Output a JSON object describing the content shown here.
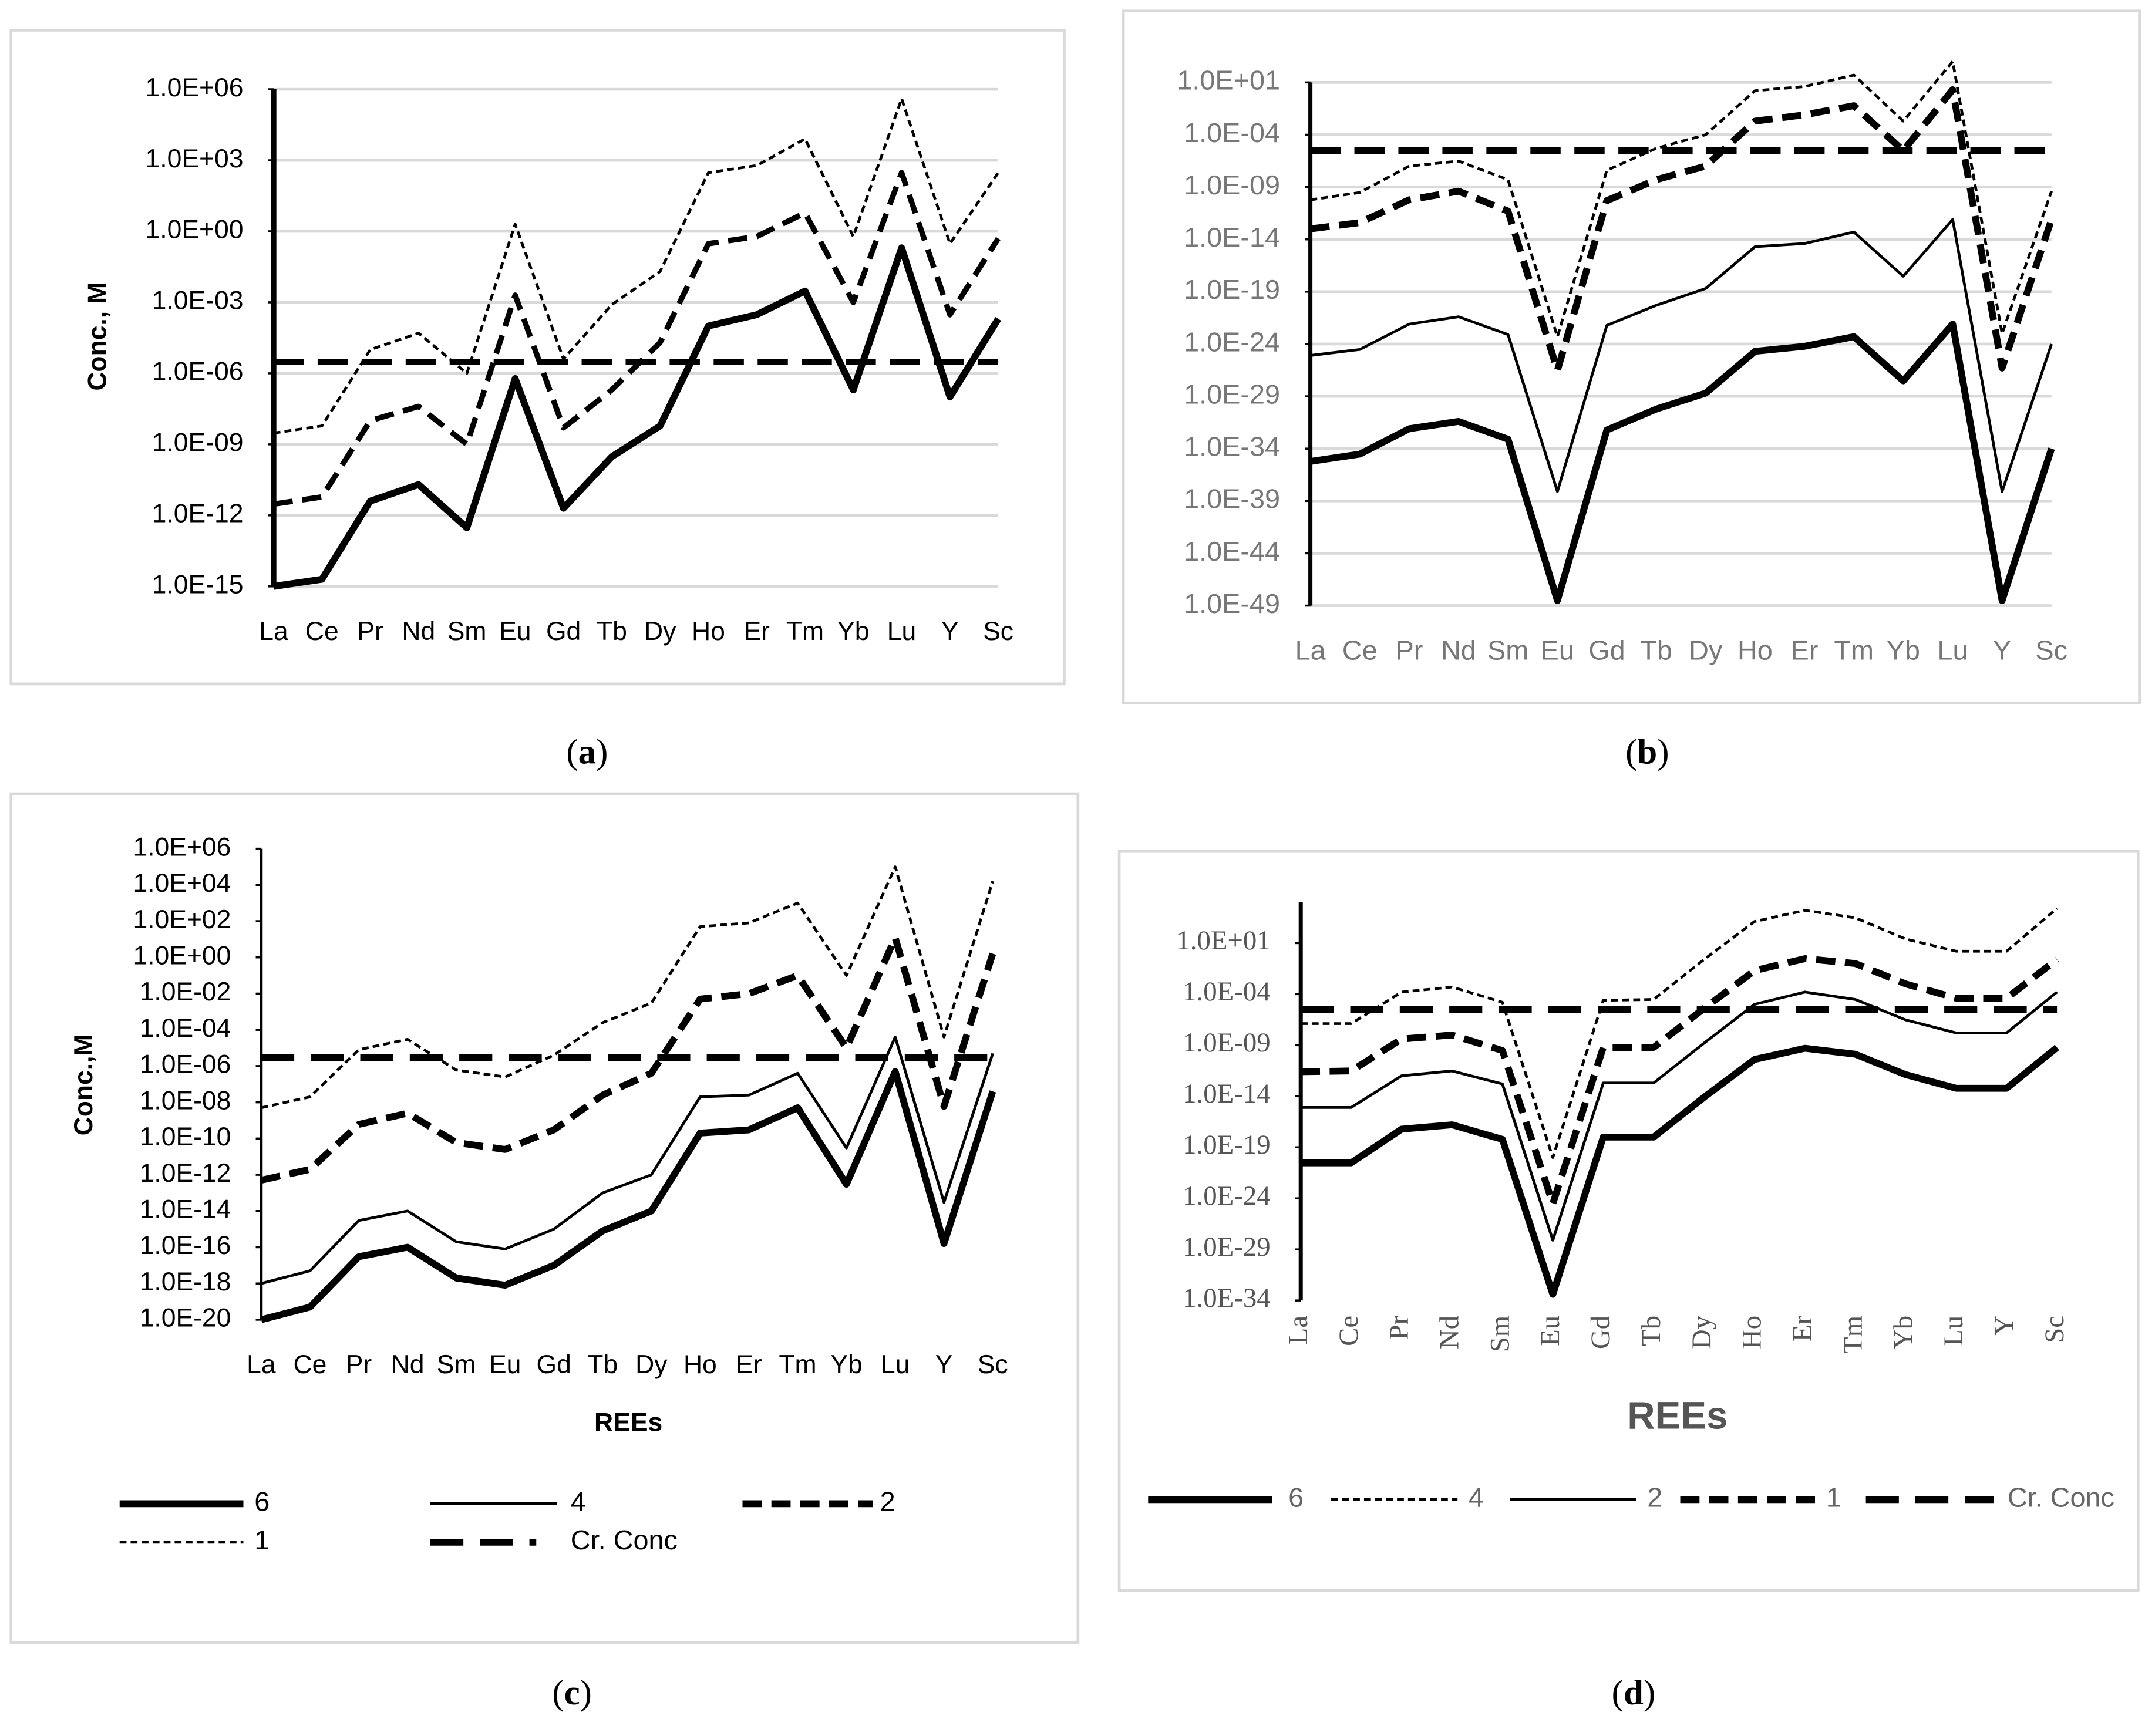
{
  "chart_data": [
    {
      "type": "line",
      "caption": "(a)",
      "y_label": "Conc., M",
      "yscale": "log",
      "grid": true,
      "categories": [
        "La",
        "Ce",
        "Pr",
        "Nd",
        "Sm",
        "Eu",
        "Gd",
        "Tb",
        "Dy",
        "Ho",
        "Er",
        "Tm",
        "Yb",
        "Lu",
        "Y",
        "Sc"
      ],
      "ylim": [
        1e-15,
        1000000.0
      ],
      "yticks": [
        {
          "value": 1000000.0,
          "label": "1.0E+06"
        },
        {
          "value": 1000.0,
          "label": "1.0E+03"
        },
        {
          "value": 1,
          "label": "1.0E+00"
        },
        {
          "value": 0.001,
          "label": "1.0E-03"
        },
        {
          "value": 1e-06,
          "label": "1.0E-06"
        },
        {
          "value": 1e-09,
          "label": "1.0E-09"
        },
        {
          "value": 1e-12,
          "label": "1.0E-12"
        },
        {
          "value": 1e-15,
          "label": "1.0E-15"
        }
      ],
      "series": [
        {
          "color": "#000000",
          "values": [
            1e-15,
            2e-15,
            4e-12,
            2e-11,
            3e-13,
            6e-07,
            2e-12,
            3e-10,
            6e-09,
            0.0001,
            0.0003,
            0.003,
            2e-07,
            0.2,
            1e-07,
            0.0002
          ]
        },
        {
          "color": "#000000",
          "values": [
            3e-12,
            6e-12,
            1e-08,
            4e-08,
            1e-09,
            0.002,
            5e-09,
            2e-07,
            2e-05,
            0.3,
            0.6,
            6,
            0.001,
            300,
            0.0003,
            0.5
          ]
        },
        {
          "color": "#000000",
          "values": [
            3e-09,
            6e-09,
            1e-05,
            5e-05,
            1e-06,
            2,
            4e-06,
            0.0008,
            0.02,
            300,
            600,
            8000,
            0.6,
            400000.0,
            0.3,
            300
          ]
        },
        {
          "color": "#000000",
          "values": [
            3e-06,
            3e-06,
            3e-06,
            3e-06,
            3e-06,
            3e-06,
            3e-06,
            3e-06,
            3e-06,
            3e-06,
            3e-06,
            3e-06,
            3e-06,
            3e-06,
            3e-06,
            3e-06
          ]
        }
      ]
    },
    {
      "type": "line",
      "caption": "(b)",
      "yscale": "log",
      "grid": true,
      "categories": [
        "La",
        "Ce",
        "Pr",
        "Nd",
        "Sm",
        "Eu",
        "Gd",
        "Tb",
        "Dy",
        "Ho",
        "Er",
        "Tm",
        "Yb",
        "Lu",
        "Y",
        "Sc"
      ],
      "ylim": [
        1e-49,
        10
      ],
      "yticks": [
        {
          "value": 10,
          "label": "1.0E+01"
        },
        {
          "value": 0.0001,
          "label": "1.0E-04"
        },
        {
          "value": 1e-09,
          "label": "1.0E-09"
        },
        {
          "value": 1e-14,
          "label": "1.0E-14"
        },
        {
          "value": 1e-19,
          "label": "1.0E-19"
        },
        {
          "value": 1e-24,
          "label": "1.0E-24"
        },
        {
          "value": 1e-29,
          "label": "1.0E-29"
        },
        {
          "value": 1e-34,
          "label": "1.0E-34"
        },
        {
          "value": 1e-39,
          "label": "1.0E-39"
        },
        {
          "value": 1e-44,
          "label": "1.0E-44"
        },
        {
          "value": 1e-49,
          "label": "1.0E-49"
        }
      ],
      "series": [
        {
          "color": "#000000",
          "values": [
            6e-36,
            3e-35,
            8e-33,
            4e-32,
            8e-34,
            3e-49,
            6e-33,
            6e-31,
            2e-29,
            2e-25,
            6e-25,
            5e-24,
            3e-28,
            8e-23,
            3e-49,
            1e-34
          ]
        },
        {
          "color": "#000000",
          "values": [
            8e-26,
            3e-25,
            8e-23,
            4e-22,
            8e-24,
            8e-39,
            6e-23,
            5e-21,
            2e-19,
            2e-15,
            4e-15,
            5e-14,
            3e-18,
            8e-13,
            8e-39,
            1e-24
          ]
        },
        {
          "color": "#000000",
          "values": [
            1e-13,
            4e-13,
            6e-11,
            4e-10,
            5e-12,
            3e-27,
            5e-11,
            5e-09,
            1e-07,
            0.002,
            0.008,
            0.06,
            3e-06,
            2,
            5e-27,
            8e-13
          ]
        },
        {
          "color": "#000000",
          "values": [
            6e-11,
            3e-10,
            1e-07,
            3e-07,
            5e-09,
            5e-24,
            4e-08,
            5e-06,
            0.0001,
            1.6,
            4,
            50,
            0.002,
            1000,
            1e-23,
            4e-10
          ]
        },
        {
          "color": "#000000",
          "values": [
            3e-06,
            3e-06,
            3e-06,
            3e-06,
            3e-06,
            3e-06,
            3e-06,
            3e-06,
            3e-06,
            3e-06,
            3e-06,
            3e-06,
            3e-06,
            3e-06,
            3e-06,
            3e-06
          ]
        }
      ]
    },
    {
      "type": "line",
      "caption": "(c)",
      "y_label": "Conc.,M",
      "x_label": "REEs",
      "yscale": "log",
      "grid": false,
      "legend": "bottom",
      "categories": [
        "La",
        "Ce",
        "Pr",
        "Nd",
        "Sm",
        "Eu",
        "Gd",
        "Tb",
        "Dy",
        "Ho",
        "Er",
        "Tm",
        "Yb",
        "Lu",
        "Y",
        "Sc"
      ],
      "ylim": [
        1e-20,
        1000000.0
      ],
      "yticks": [
        {
          "value": 1000000.0,
          "label": "1.0E+06"
        },
        {
          "value": 10000.0,
          "label": "1.0E+04"
        },
        {
          "value": 100,
          "label": "1.0E+02"
        },
        {
          "value": 1,
          "label": "1.0E+00"
        },
        {
          "value": 0.01,
          "label": "1.0E-02"
        },
        {
          "value": 0.0001,
          "label": "1.0E-04"
        },
        {
          "value": 1e-06,
          "label": "1.0E-06"
        },
        {
          "value": 1e-08,
          "label": "1.0E-08"
        },
        {
          "value": 1e-10,
          "label": "1.0E-10"
        },
        {
          "value": 1e-12,
          "label": "1.0E-12"
        },
        {
          "value": 1e-14,
          "label": "1.0E-14"
        },
        {
          "value": 1e-16,
          "label": "1.0E-16"
        },
        {
          "value": 1e-18,
          "label": "1.0E-18"
        },
        {
          "value": 1e-20,
          "label": "1.0E-20"
        }
      ],
      "series": [
        {
          "name": "6",
          "color": "#000000",
          "values": [
            1e-20,
            5e-20,
            3e-17,
            1e-16,
            2e-18,
            8e-19,
            1e-17,
            8e-16,
            1e-14,
            2e-10,
            3e-10,
            5e-09,
            3e-13,
            5e-07,
            1.6e-16,
            4e-08
          ]
        },
        {
          "name": "4",
          "color": "#000000",
          "values": [
            1e-18,
            5e-18,
            3e-15,
            1e-14,
            2e-16,
            8e-17,
            1e-15,
            1e-13,
            1e-12,
            2e-08,
            2.5e-08,
            4e-07,
            3e-11,
            4e-05,
            3e-14,
            5e-06
          ]
        },
        {
          "name": "2",
          "color": "#000000",
          "values": [
            5e-13,
            2e-12,
            6e-10,
            2.5e-09,
            6e-11,
            2.5e-11,
            3e-10,
            2.5e-08,
            4e-07,
            0.005,
            0.01,
            0.1,
            1e-05,
            12,
            6e-09,
            1.6
          ]
        },
        {
          "name": "1",
          "color": "#000000",
          "values": [
            5e-09,
            2e-08,
            8e-06,
            3e-05,
            6e-07,
            2.5e-07,
            4e-06,
            0.00025,
            0.003,
            50,
            80,
            1000,
            0.1,
            100000.0,
            4e-05,
            16000.0
          ]
        },
        {
          "name": "Cr. Conc",
          "color": "#000000",
          "values": [
            3e-06,
            3e-06,
            3e-06,
            3e-06,
            3e-06,
            3e-06,
            3e-06,
            3e-06,
            3e-06,
            3e-06,
            3e-06,
            3e-06,
            3e-06,
            3e-06,
            3e-06,
            3e-06
          ]
        }
      ]
    },
    {
      "type": "line",
      "caption": "(d)",
      "x_label": "REEs",
      "yscale": "log",
      "grid": false,
      "legend": "bottom",
      "categories": [
        "La",
        "Ce",
        "Pr",
        "Nd",
        "Sm",
        "Eu",
        "Gd",
        "Tb",
        "Dy",
        "Ho",
        "Er",
        "Tm",
        "Yb",
        "Lu",
        "Y",
        "Sc"
      ],
      "ylim": [
        1e-34,
        100000.0
      ],
      "yticks": [
        {
          "value": 10,
          "label": "1.0E+01"
        },
        {
          "value": 0.0001,
          "label": "1.0E-04"
        },
        {
          "value": 1e-09,
          "label": "1.0E-09"
        },
        {
          "value": 1e-14,
          "label": "1.0E-14"
        },
        {
          "value": 1e-19,
          "label": "1.0E-19"
        },
        {
          "value": 1e-24,
          "label": "1.0E-24"
        },
        {
          "value": 1e-29,
          "label": "1.0E-29"
        },
        {
          "value": 1e-34,
          "label": "1.0E-34"
        }
      ],
      "series": [
        {
          "name": "6",
          "color": "#000000",
          "values": [
            3e-21,
            3e-21,
            6e-18,
            1.6e-17,
            6e-19,
            4e-34,
            1e-18,
            1e-18,
            8e-15,
            4e-11,
            5e-10,
            1.3e-10,
            1.3e-12,
            6e-14,
            6e-14,
            6e-10
          ]
        },
        {
          "name": "4",
          "color": "#000000",
          "values": [
            1.3e-07,
            1.3e-07,
            0.00016,
            0.0005,
            1.6e-05,
            1e-20,
            2.5e-05,
            3e-05,
            0.25,
            1300,
            16000.0,
            3000,
            25,
            1.6,
            1.6,
            25000.0
          ]
        },
        {
          "name": "2",
          "color": "#000000",
          "values": [
            8e-16,
            8e-16,
            1e-12,
            3e-12,
            1.6e-13,
            8e-29,
            2e-13,
            2e-13,
            1.6e-09,
            1e-05,
            0.00016,
            3e-05,
            3e-07,
            1.6e-08,
            1.6e-08,
            0.00016
          ]
        },
        {
          "name": "1",
          "color": "#000000",
          "values": [
            2.5e-12,
            3e-12,
            4e-09,
            1e-08,
            3e-10,
            3e-25,
            6e-10,
            6e-10,
            4e-06,
            0.02,
            0.3,
            0.1,
            0.001,
            4e-05,
            4e-05,
            0.25
          ]
        },
        {
          "name": "Cr. Conc",
          "color": "#000000",
          "values": [
            3e-06,
            3e-06,
            3e-06,
            3e-06,
            3e-06,
            3e-06,
            3e-06,
            3e-06,
            3e-06,
            3e-06,
            3e-06,
            3e-06,
            3e-06,
            3e-06,
            3e-06,
            3e-06
          ]
        }
      ]
    }
  ]
}
